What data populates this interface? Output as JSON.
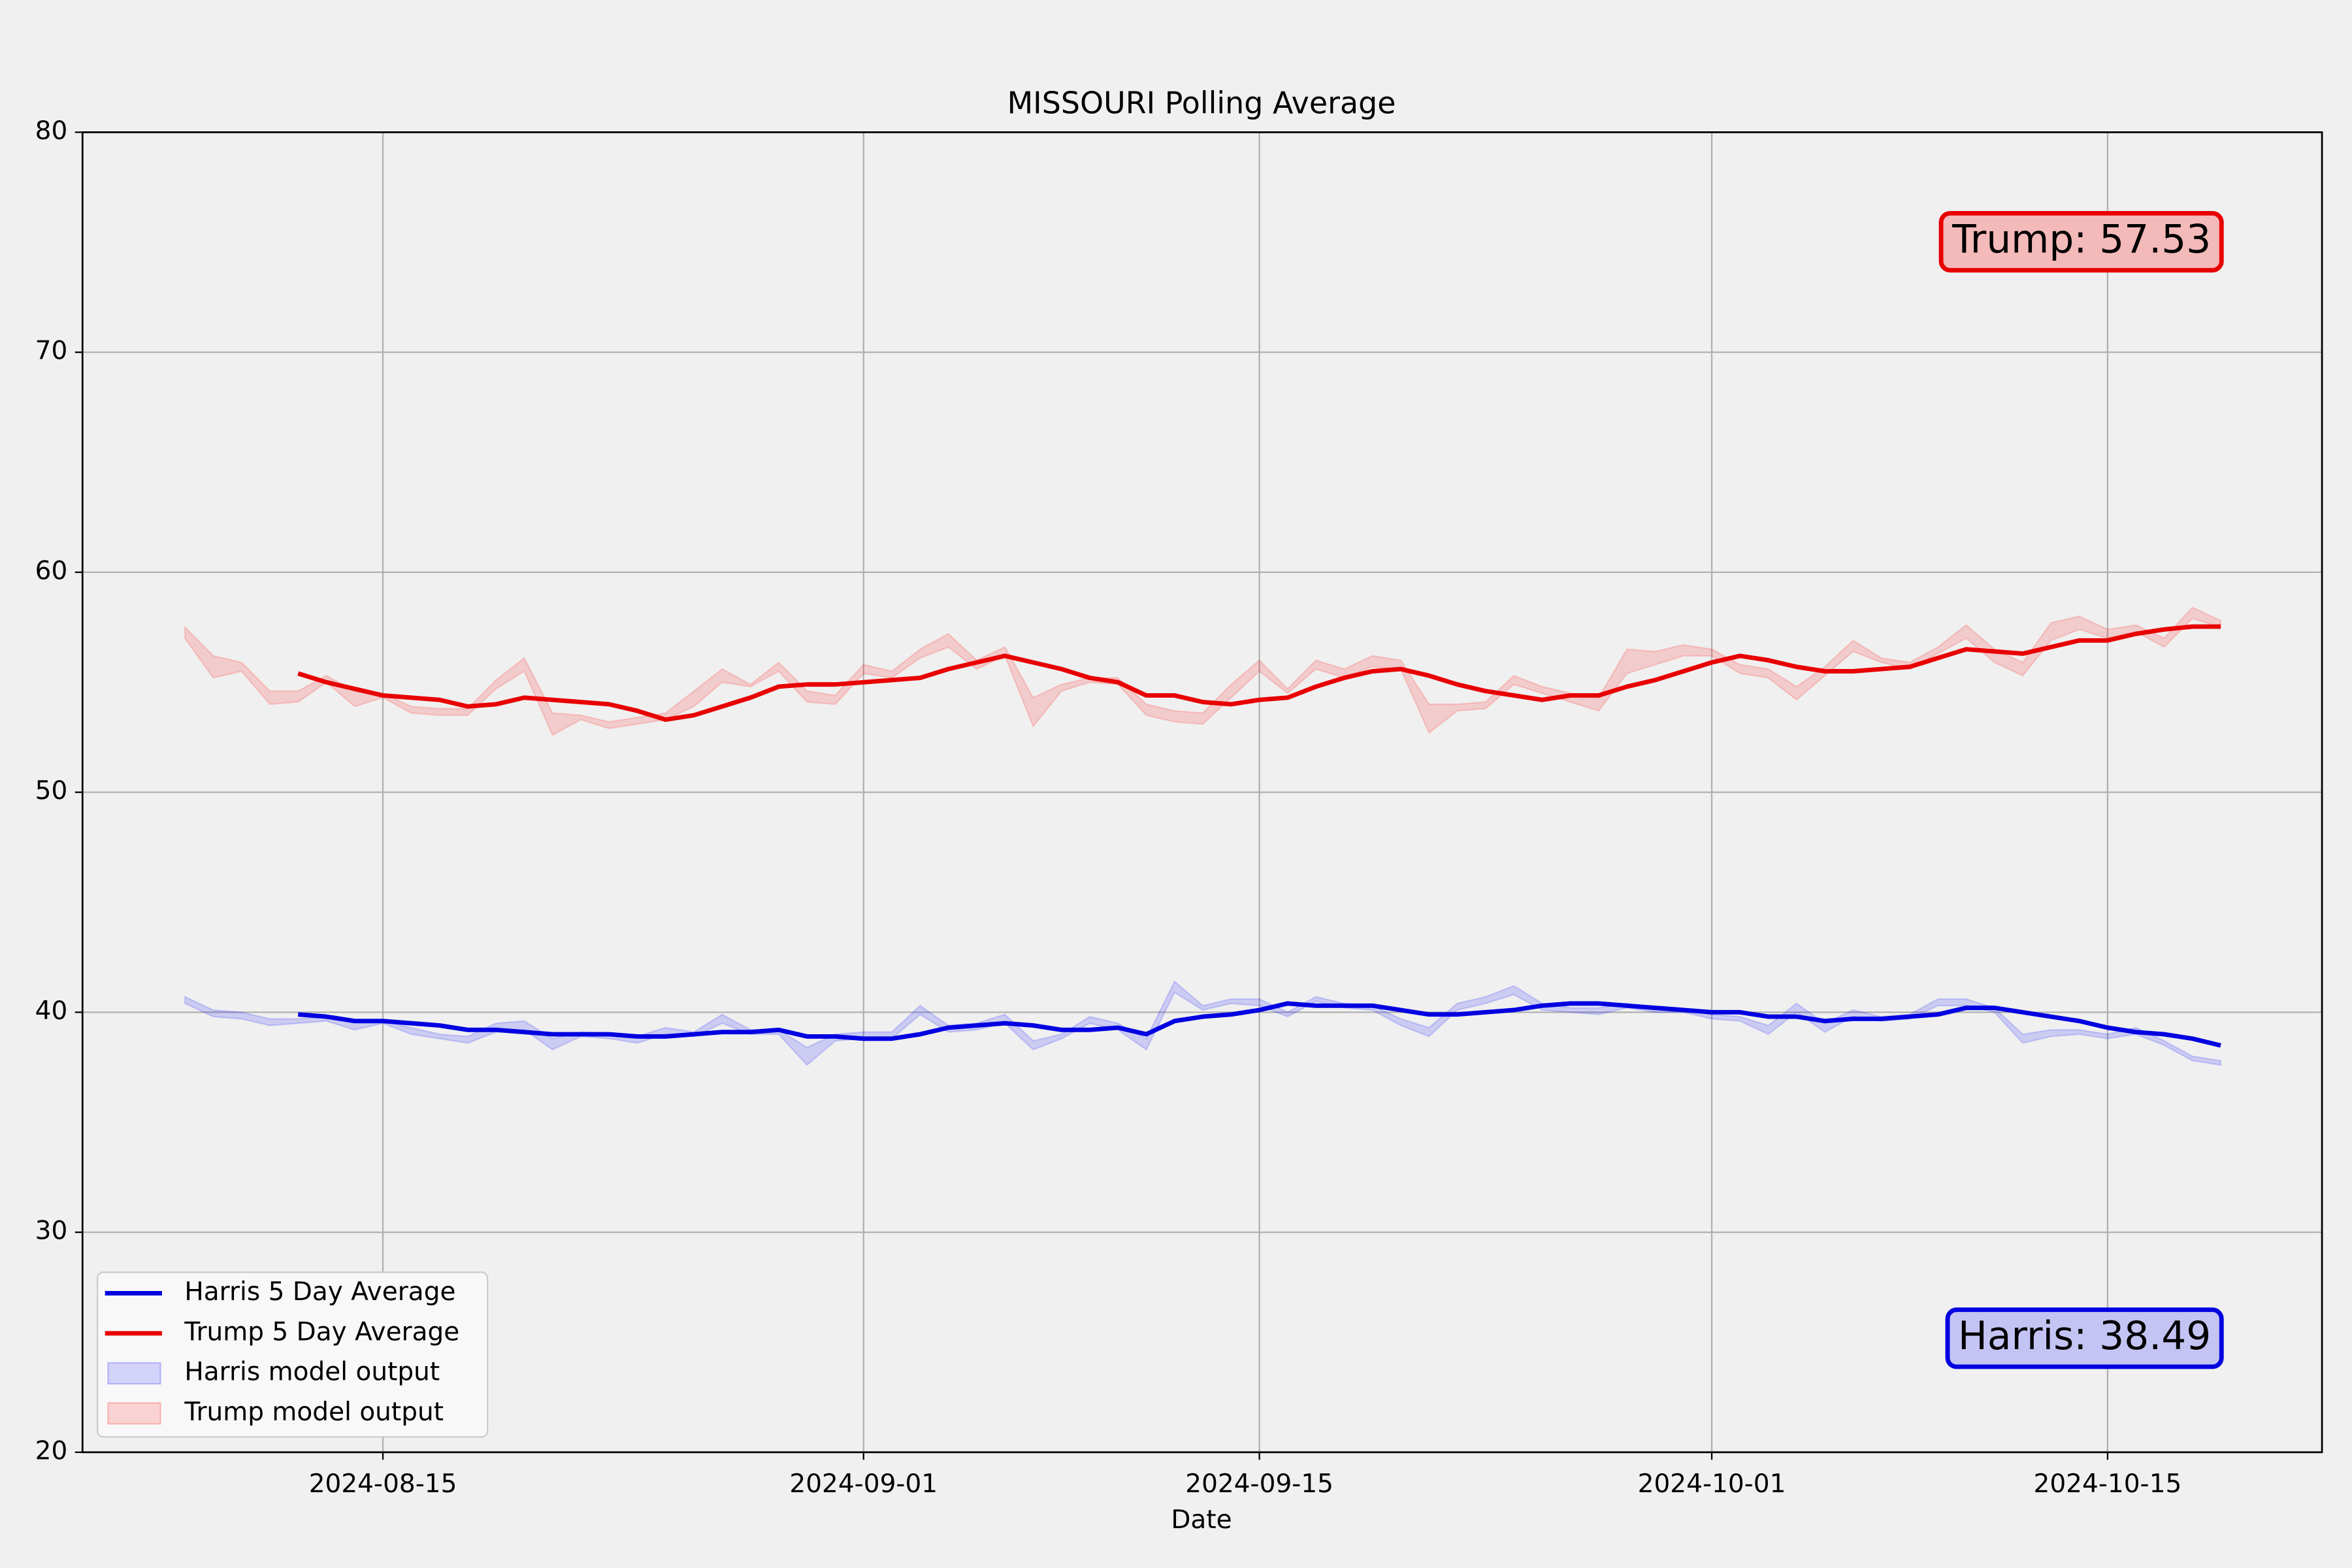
{
  "chart_data": {
    "type": "line",
    "title": "MISSOURI Polling Average",
    "xlabel": "Date",
    "x": [
      "2024-08-08",
      "2024-08-09",
      "2024-08-10",
      "2024-08-11",
      "2024-08-12",
      "2024-08-13",
      "2024-08-14",
      "2024-08-15",
      "2024-08-16",
      "2024-08-17",
      "2024-08-18",
      "2024-08-19",
      "2024-08-20",
      "2024-08-21",
      "2024-08-22",
      "2024-08-23",
      "2024-08-24",
      "2024-08-25",
      "2024-08-26",
      "2024-08-27",
      "2024-08-28",
      "2024-08-29",
      "2024-08-30",
      "2024-08-31",
      "2024-09-01",
      "2024-09-02",
      "2024-09-03",
      "2024-09-04",
      "2024-09-05",
      "2024-09-06",
      "2024-09-07",
      "2024-09-08",
      "2024-09-09",
      "2024-09-10",
      "2024-09-11",
      "2024-09-12",
      "2024-09-13",
      "2024-09-14",
      "2024-09-15",
      "2024-09-16",
      "2024-09-17",
      "2024-09-18",
      "2024-09-19",
      "2024-09-20",
      "2024-09-21",
      "2024-09-22",
      "2024-09-23",
      "2024-09-24",
      "2024-09-25",
      "2024-09-26",
      "2024-09-27",
      "2024-09-28",
      "2024-09-29",
      "2024-09-30",
      "2024-10-01",
      "2024-10-02",
      "2024-10-03",
      "2024-10-04",
      "2024-10-05",
      "2024-10-06",
      "2024-10-07",
      "2024-10-08",
      "2024-10-09",
      "2024-10-10",
      "2024-10-11",
      "2024-10-12",
      "2024-10-13",
      "2024-10-14",
      "2024-10-15",
      "2024-10-16",
      "2024-10-17",
      "2024-10-18",
      "2024-10-19"
    ],
    "series": [
      {
        "name": "Harris 5 Day Average",
        "color": "#0000e0",
        "values": [
          null,
          null,
          null,
          null,
          39.9,
          39.8,
          39.6,
          39.6,
          39.5,
          39.4,
          39.2,
          39.2,
          39.1,
          39.0,
          39.0,
          39.0,
          38.9,
          38.9,
          39.0,
          39.1,
          39.1,
          39.2,
          38.9,
          38.9,
          38.8,
          38.8,
          39.0,
          39.3,
          39.4,
          39.5,
          39.4,
          39.2,
          39.2,
          39.3,
          39.0,
          39.6,
          39.8,
          39.9,
          40.1,
          40.4,
          40.3,
          40.3,
          40.3,
          40.1,
          39.9,
          39.9,
          40.0,
          40.1,
          40.3,
          40.4,
          40.4,
          40.3,
          40.2,
          40.1,
          40.0,
          40.0,
          39.8,
          39.8,
          39.6,
          39.7,
          39.7,
          39.8,
          39.9,
          40.2,
          40.2,
          40.0,
          39.8,
          39.6,
          39.3,
          39.1,
          39.0,
          38.8,
          38.49
        ]
      },
      {
        "name": "Trump 5 Day Average",
        "color": "#e80000",
        "values": [
          null,
          null,
          null,
          null,
          55.4,
          55.0,
          54.7,
          54.4,
          54.3,
          54.2,
          53.9,
          54.0,
          54.3,
          54.2,
          54.1,
          54.0,
          53.7,
          53.3,
          53.5,
          53.9,
          54.3,
          54.8,
          54.9,
          54.9,
          55.0,
          55.1,
          55.2,
          55.6,
          55.9,
          56.2,
          55.9,
          55.6,
          55.2,
          55.0,
          54.4,
          54.4,
          54.1,
          54.0,
          54.2,
          54.3,
          54.8,
          55.2,
          55.5,
          55.6,
          55.3,
          54.9,
          54.6,
          54.4,
          54.2,
          54.4,
          54.4,
          54.8,
          55.1,
          55.5,
          55.9,
          56.2,
          56.0,
          55.7,
          55.5,
          55.5,
          55.6,
          55.7,
          56.1,
          56.5,
          56.4,
          56.3,
          56.6,
          56.9,
          56.9,
          57.2,
          57.4,
          57.53,
          57.53
        ]
      }
    ],
    "bands": [
      {
        "name": "Harris model output",
        "color": "#0000ff",
        "high": [
          40.7,
          40.1,
          40.0,
          39.7,
          39.7,
          39.8,
          39.6,
          39.6,
          39.3,
          39.0,
          38.9,
          39.5,
          39.6,
          38.8,
          39.1,
          39.0,
          38.9,
          39.3,
          39.1,
          39.9,
          39.2,
          39.2,
          38.4,
          39.0,
          39.1,
          39.1,
          40.3,
          39.4,
          39.5,
          39.9,
          38.7,
          39.0,
          39.8,
          39.5,
          38.8,
          41.4,
          40.3,
          40.6,
          40.6,
          40.0,
          40.7,
          40.4,
          40.3,
          39.7,
          39.3,
          40.4,
          40.7,
          41.2,
          40.4,
          40.2,
          40.2,
          40.4,
          40.1,
          40.1,
          39.9,
          39.8,
          39.4,
          40.4,
          39.5,
          40.1,
          39.8,
          39.9,
          40.6,
          40.6,
          40.2,
          39.0,
          39.2,
          39.2,
          39.0,
          39.3,
          38.7,
          38.0,
          37.8
        ],
        "low": [
          40.4,
          39.8,
          39.7,
          39.4,
          39.5,
          39.6,
          39.2,
          39.5,
          39.0,
          38.8,
          38.6,
          39.1,
          39.2,
          38.3,
          38.9,
          38.8,
          38.6,
          39.0,
          38.9,
          39.5,
          39.0,
          39.0,
          37.6,
          38.7,
          38.8,
          38.8,
          39.9,
          39.1,
          39.2,
          39.5,
          38.3,
          38.8,
          39.5,
          39.2,
          38.3,
          40.9,
          40.1,
          40.4,
          40.3,
          39.8,
          40.5,
          40.2,
          40.1,
          39.4,
          38.9,
          40.1,
          40.4,
          40.8,
          40.1,
          40.0,
          39.9,
          40.2,
          40.0,
          40.0,
          39.7,
          39.6,
          39.0,
          40.0,
          39.1,
          39.8,
          39.6,
          39.7,
          40.3,
          40.3,
          40.0,
          38.6,
          38.9,
          39.0,
          38.8,
          39.0,
          38.5,
          37.8,
          37.6
        ]
      },
      {
        "name": "Trump model output",
        "color": "#ff0000",
        "high": [
          57.5,
          56.2,
          55.9,
          54.6,
          54.6,
          55.3,
          54.6,
          54.5,
          53.9,
          53.8,
          53.8,
          55.1,
          56.1,
          53.6,
          53.5,
          53.2,
          53.4,
          53.6,
          54.6,
          55.6,
          54.9,
          55.9,
          54.6,
          54.4,
          55.8,
          55.5,
          56.5,
          57.2,
          56.0,
          56.6,
          54.3,
          54.9,
          55.2,
          55.2,
          54.0,
          53.7,
          53.6,
          54.9,
          56.0,
          54.7,
          56.0,
          55.6,
          56.2,
          56.0,
          54.0,
          54.0,
          54.1,
          55.3,
          54.8,
          54.5,
          54.3,
          56.5,
          56.4,
          56.7,
          56.5,
          55.8,
          55.6,
          54.8,
          55.7,
          56.9,
          56.1,
          55.9,
          56.6,
          57.6,
          56.5,
          55.9,
          57.7,
          58.0,
          57.4,
          57.6,
          57.0,
          58.4,
          57.8
        ],
        "low": [
          57.0,
          55.2,
          55.5,
          54.0,
          54.1,
          55.0,
          53.9,
          54.3,
          53.6,
          53.5,
          53.5,
          54.7,
          55.5,
          52.6,
          53.3,
          52.9,
          53.1,
          53.3,
          53.9,
          55.0,
          54.8,
          55.5,
          54.1,
          54.0,
          55.4,
          55.2,
          56.1,
          56.6,
          55.6,
          56.2,
          53.0,
          54.6,
          55.0,
          54.9,
          53.5,
          53.2,
          53.1,
          54.3,
          55.5,
          54.5,
          55.6,
          55.2,
          55.7,
          55.6,
          52.7,
          53.7,
          53.8,
          54.9,
          54.5,
          54.1,
          53.7,
          55.4,
          55.8,
          56.2,
          56.2,
          55.4,
          55.2,
          54.2,
          55.3,
          56.4,
          55.9,
          55.6,
          56.3,
          57.0,
          55.9,
          55.3,
          56.9,
          57.4,
          57.0,
          57.3,
          56.6,
          57.9,
          57.5
        ]
      }
    ],
    "annotations": [
      {
        "text": "Trump: 57.53",
        "color": "#e80000",
        "fill": "#f4b9b9"
      },
      {
        "text": "Harris: 38.49",
        "color": "#0000e0",
        "fill": "#c4c4f4"
      }
    ],
    "xlim": [
      "2024-08-04T09:00",
      "2024-10-22T14:00"
    ],
    "xticks": [
      "2024-08-15",
      "2024-09-01",
      "2024-09-15",
      "2024-10-01",
      "2024-10-15"
    ],
    "ylim": [
      20,
      80
    ],
    "yticks": [
      20,
      30,
      40,
      50,
      60,
      70,
      80
    ],
    "grid": true,
    "legend": "lower left"
  }
}
